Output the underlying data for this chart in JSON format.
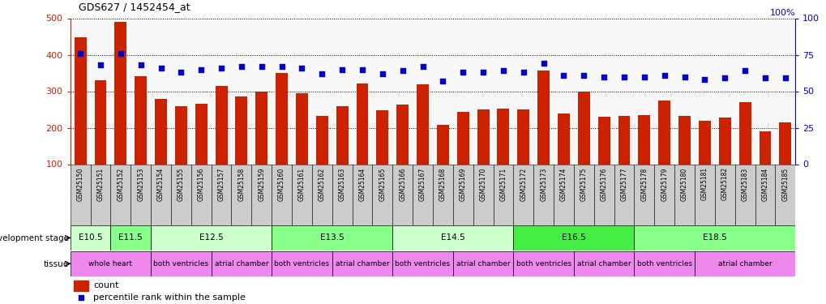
{
  "title": "GDS627 / 1452454_at",
  "samples": [
    "GSM25150",
    "GSM25151",
    "GSM25152",
    "GSM25153",
    "GSM25154",
    "GSM25155",
    "GSM25156",
    "GSM25157",
    "GSM25158",
    "GSM25159",
    "GSM25160",
    "GSM25161",
    "GSM25162",
    "GSM25163",
    "GSM25164",
    "GSM25165",
    "GSM25166",
    "GSM25167",
    "GSM25168",
    "GSM25169",
    "GSM25170",
    "GSM25171",
    "GSM25172",
    "GSM25173",
    "GSM25174",
    "GSM25175",
    "GSM25176",
    "GSM25177",
    "GSM25178",
    "GSM25179",
    "GSM25180",
    "GSM25181",
    "GSM25182",
    "GSM25183",
    "GSM25184",
    "GSM25185"
  ],
  "counts": [
    447,
    330,
    490,
    342,
    280,
    258,
    265,
    315,
    285,
    300,
    350,
    295,
    232,
    260,
    322,
    247,
    263,
    320,
    207,
    243,
    249,
    252,
    250,
    357,
    240,
    300,
    231,
    232,
    235,
    275,
    232,
    219,
    228,
    270,
    190,
    215
  ],
  "percentiles": [
    76,
    68,
    76,
    68,
    66,
    63,
    65,
    66,
    67,
    67,
    67,
    66,
    62,
    65,
    65,
    62,
    64,
    67,
    57,
    63,
    63,
    64,
    63,
    69,
    61,
    61,
    60,
    60,
    60,
    61,
    60,
    58,
    59,
    64,
    59,
    59
  ],
  "bar_color": "#cc2200",
  "dot_color": "#0000cc",
  "left_ylim": [
    100,
    500
  ],
  "left_yticks": [
    100,
    200,
    300,
    400,
    500
  ],
  "right_ylim": [
    0,
    100
  ],
  "right_yticks": [
    0,
    25,
    50,
    75,
    100
  ],
  "right_ylabel": "100%",
  "dev_stages": [
    {
      "label": "E10.5",
      "start": 0,
      "end": 2,
      "color": "#ccffcc"
    },
    {
      "label": "E11.5",
      "start": 2,
      "end": 4,
      "color": "#88ff88"
    },
    {
      "label": "E12.5",
      "start": 4,
      "end": 10,
      "color": "#ccffcc"
    },
    {
      "label": "E13.5",
      "start": 10,
      "end": 16,
      "color": "#88ff88"
    },
    {
      "label": "E14.5",
      "start": 16,
      "end": 22,
      "color": "#ccffcc"
    },
    {
      "label": "E16.5",
      "start": 22,
      "end": 28,
      "color": "#44ee44"
    },
    {
      "label": "E18.5",
      "start": 28,
      "end": 36,
      "color": "#88ff88"
    }
  ],
  "tissues": [
    {
      "label": "whole heart",
      "start": 0,
      "end": 4,
      "color": "#ee88ee"
    },
    {
      "label": "both ventricles",
      "start": 4,
      "end": 7,
      "color": "#ee88ee"
    },
    {
      "label": "atrial chamber",
      "start": 7,
      "end": 10,
      "color": "#ee88ee"
    },
    {
      "label": "both ventricles",
      "start": 10,
      "end": 13,
      "color": "#ee88ee"
    },
    {
      "label": "atrial chamber",
      "start": 13,
      "end": 16,
      "color": "#ee88ee"
    },
    {
      "label": "both ventricles",
      "start": 16,
      "end": 19,
      "color": "#ee88ee"
    },
    {
      "label": "atrial chamber",
      "start": 19,
      "end": 22,
      "color": "#ee88ee"
    },
    {
      "label": "both ventricles",
      "start": 22,
      "end": 25,
      "color": "#ee88ee"
    },
    {
      "label": "atrial chamber",
      "start": 25,
      "end": 28,
      "color": "#ee88ee"
    },
    {
      "label": "both ventricles",
      "start": 28,
      "end": 31,
      "color": "#ee88ee"
    },
    {
      "label": "atrial chamber",
      "start": 31,
      "end": 36,
      "color": "#ee88ee"
    }
  ],
  "tick_bg_color": "#cccccc",
  "dev_label": "development stage",
  "tissue_label": "tissue"
}
